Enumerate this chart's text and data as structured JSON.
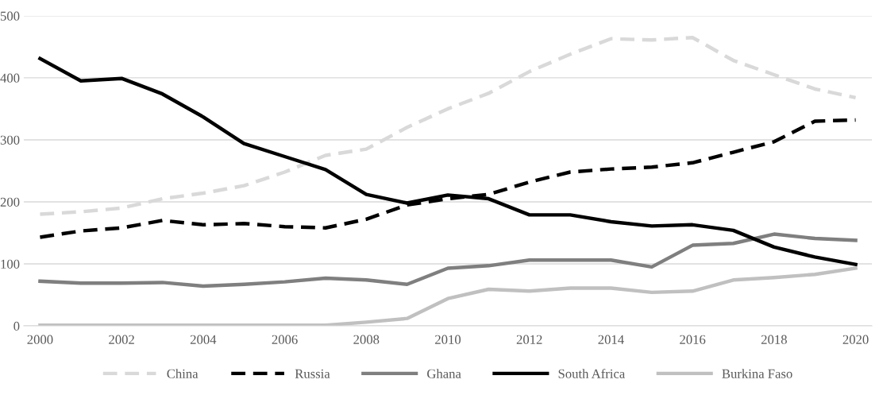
{
  "chart_data": {
    "type": "line",
    "x": [
      2000,
      2001,
      2002,
      2003,
      2004,
      2005,
      2006,
      2007,
      2008,
      2009,
      2010,
      2011,
      2012,
      2013,
      2014,
      2015,
      2016,
      2017,
      2018,
      2019,
      2020
    ],
    "series": [
      {
        "name": "China",
        "color": "#d9d9d9",
        "line_style": "dashed",
        "values": [
          180,
          184,
          190,
          205,
          214,
          226,
          248,
          275,
          285,
          320,
          350,
          375,
          410,
          438,
          463,
          461,
          465,
          428,
          405,
          382,
          368
        ]
      },
      {
        "name": "Russia",
        "color": "#000000",
        "line_style": "dashed",
        "values": [
          143,
          153,
          158,
          170,
          163,
          165,
          160,
          158,
          172,
          195,
          205,
          212,
          232,
          248,
          253,
          256,
          263,
          280,
          297,
          330,
          332
        ]
      },
      {
        "name": "Ghana",
        "color": "#7f7f7f",
        "line_style": "solid",
        "values": [
          72,
          69,
          69,
          70,
          64,
          67,
          71,
          77,
          74,
          67,
          93,
          97,
          106,
          106,
          106,
          95,
          130,
          133,
          148,
          141,
          138
        ]
      },
      {
        "name": "South Africa",
        "color": "#000000",
        "line_style": "solid",
        "values": [
          431,
          395,
          399,
          374,
          337,
          294,
          273,
          252,
          212,
          198,
          211,
          205,
          179,
          179,
          168,
          161,
          163,
          154,
          127,
          111,
          99
        ]
      },
      {
        "name": "Burkina Faso",
        "color": "#c0c0c0",
        "line_style": "solid",
        "values": [
          1,
          1,
          1,
          1,
          1,
          1,
          1,
          1,
          6,
          12,
          44,
          59,
          56,
          61,
          61,
          54,
          56,
          74,
          78,
          83,
          93
        ]
      }
    ],
    "xlim": [
      1999.6,
      2020.4
    ],
    "ylim": [
      0,
      500
    ],
    "xticks": [
      2000,
      2002,
      2004,
      2006,
      2008,
      2010,
      2012,
      2014,
      2016,
      2018,
      2020
    ],
    "yticks": [
      0,
      100,
      200,
      300,
      400,
      500
    ],
    "grid": "y",
    "legend": "bottom",
    "marker": "none"
  }
}
